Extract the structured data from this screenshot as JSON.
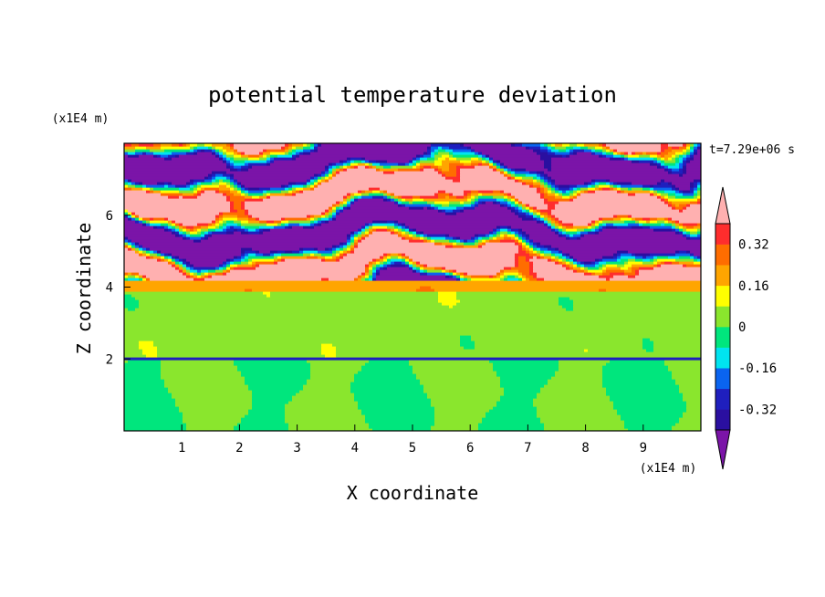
{
  "chart_data": {
    "type": "heatmap",
    "title": "potential temperature deviation",
    "xlabel": "X coordinate",
    "ylabel": "Z coordinate",
    "x_unit": "(x1E4 m)",
    "y_unit": "(x1E4 m)",
    "time_label": "t=7.29e+06 s",
    "xlim": [
      0,
      10
    ],
    "ylim": [
      0,
      8
    ],
    "x_ticks": [
      1,
      2,
      3,
      4,
      5,
      6,
      7,
      8,
      9
    ],
    "y_ticks": [
      2,
      4,
      6
    ],
    "x_tick_labels": [
      "1",
      "2",
      "3",
      "4",
      "5",
      "6",
      "7",
      "8",
      "9"
    ],
    "y_tick_labels": [
      "2",
      "4",
      "6"
    ],
    "colorbar": {
      "levels": [
        -0.4,
        -0.32,
        -0.24,
        -0.16,
        -0.08,
        0,
        0.08,
        0.16,
        0.24,
        0.32,
        0.4
      ],
      "labels": [
        "0.32",
        "0.16",
        "0",
        "-0.16",
        "-0.32"
      ],
      "label_values": [
        0.32,
        0.16,
        0,
        -0.16,
        -0.32
      ],
      "extend": "both"
    },
    "grid": false,
    "colors": {
      "below_min": "#7b14a8",
      "bands": [
        "#2a0fa0",
        "#1f1fbe",
        "#0a64f0",
        "#00e4f0",
        "#00e67d",
        "#8ae62d",
        "#ffff00",
        "#ffa500",
        "#ff6d00",
        "#ff2d2d"
      ],
      "above_max": "#ffb0b0"
    },
    "layers": [
      {
        "z": [
          0,
          2.0
        ],
        "description_value": "mix of -0.08..0 and 0..0.08",
        "dominant": -0.04
      },
      {
        "z": [
          2.0,
          2.05
        ],
        "dominant": -0.3
      },
      {
        "z": [
          2.05,
          3.9
        ],
        "dominant": 0.04
      },
      {
        "z": [
          3.9,
          4.2
        ],
        "dominant": 0.2
      },
      {
        "z": [
          4.2,
          8.0
        ],
        "dominant": "alternating above max and below min"
      }
    ]
  }
}
